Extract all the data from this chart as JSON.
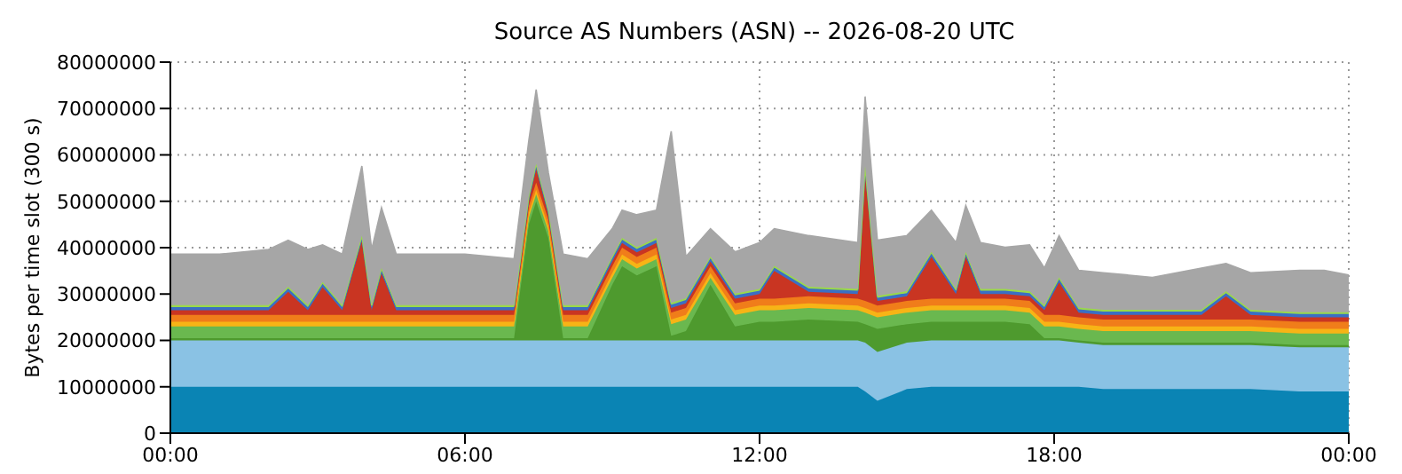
{
  "chart_data": {
    "type": "area",
    "title": "Source AS Numbers (ASN) -- 2026-08-20 UTC",
    "ylabel": "Bytes per time slot (300 s)",
    "stacked": true,
    "grid": true,
    "x": [
      0,
      1,
      2,
      2.4,
      2.8,
      3.1,
      3.5,
      3.9,
      4.1,
      4.3,
      4.6,
      5,
      6,
      7,
      7.3,
      7.45,
      7.7,
      8,
      8.5,
      9,
      9.2,
      9.5,
      9.9,
      10.2,
      10.5,
      11,
      11.5,
      12,
      12.3,
      13,
      14,
      14.15,
      14.4,
      15,
      15.5,
      16,
      16.2,
      16.5,
      17,
      17.5,
      17.8,
      18.1,
      18.5,
      19,
      20,
      21,
      21.5,
      22,
      23,
      23.5,
      24
    ],
    "xlim": [
      0,
      24
    ],
    "xticks": [
      {
        "value": 0,
        "label": "00:00"
      },
      {
        "value": 6,
        "label": "06:00"
      },
      {
        "value": 12,
        "label": "12:00"
      },
      {
        "value": 18,
        "label": "18:00"
      },
      {
        "value": 24,
        "label": "00:00"
      }
    ],
    "ylim": [
      0,
      80000000
    ],
    "yticks": [
      0,
      10000000,
      20000000,
      30000000,
      40000000,
      50000000,
      60000000,
      70000000,
      80000000
    ],
    "series": [
      {
        "color": "#0a84b4",
        "values": [
          10000000,
          10000000,
          10000000,
          10000000,
          10000000,
          10000000,
          10000000,
          10000000,
          10000000,
          10000000,
          10000000,
          10000000,
          10000000,
          10000000,
          10000000,
          10000000,
          10000000,
          10000000,
          10000000,
          10000000,
          10000000,
          10000000,
          10000000,
          10000000,
          10000000,
          10000000,
          10000000,
          10000000,
          10000000,
          10000000,
          10000000,
          9000000,
          7000000,
          9500000,
          10000000,
          10000000,
          10000000,
          10000000,
          10000000,
          10000000,
          10000000,
          10000000,
          10000000,
          9500000,
          9500000,
          9500000,
          9500000,
          9500000,
          9000000,
          9000000,
          9000000
        ]
      },
      {
        "color": "#8ac2e4",
        "values": [
          10000000,
          10000000,
          10000000,
          10000000,
          10000000,
          10000000,
          10000000,
          10000000,
          10000000,
          10000000,
          10000000,
          10000000,
          10000000,
          10000000,
          10000000,
          10000000,
          10000000,
          10000000,
          10000000,
          10000000,
          10000000,
          10000000,
          10000000,
          10000000,
          10000000,
          10000000,
          10000000,
          10000000,
          10000000,
          10000000,
          10000000,
          10500000,
          10500000,
          10000000,
          10000000,
          10000000,
          10000000,
          10000000,
          10000000,
          10000000,
          10000000,
          10000000,
          9500000,
          9500000,
          9500000,
          9500000,
          9500000,
          9500000,
          9500000,
          9500000,
          9500000
        ]
      },
      {
        "color": "#4e9a2e",
        "values": [
          500000,
          500000,
          500000,
          500000,
          500000,
          500000,
          500000,
          500000,
          500000,
          500000,
          500000,
          500000,
          500000,
          500000,
          25000000,
          30000000,
          22000000,
          500000,
          500000,
          12000000,
          16000000,
          14000000,
          16000000,
          1000000,
          2000000,
          12000000,
          3000000,
          4000000,
          4000000,
          4500000,
          4000000,
          4000000,
          5000000,
          4000000,
          4000000,
          4000000,
          4000000,
          4000000,
          4000000,
          3500000,
          500000,
          500000,
          500000,
          500000,
          500000,
          500000,
          500000,
          500000,
          500000,
          500000,
          500000
        ]
      },
      {
        "color": "#6ab84f",
        "values": [
          2500000,
          2500000,
          2500000,
          2500000,
          2500000,
          2500000,
          2500000,
          2500000,
          2500000,
          2500000,
          2500000,
          2500000,
          2500000,
          2500000,
          1500000,
          1500000,
          1500000,
          2500000,
          2500000,
          1500000,
          1500000,
          1500000,
          1500000,
          2500000,
          2500000,
          1500000,
          2500000,
          2500000,
          2500000,
          2500000,
          2500000,
          2500000,
          2500000,
          2500000,
          2500000,
          2500000,
          2500000,
          2500000,
          2500000,
          2500000,
          2500000,
          2500000,
          2500000,
          2500000,
          2500000,
          2500000,
          2500000,
          2500000,
          2500000,
          2500000,
          2500000
        ]
      },
      {
        "color": "#f7b416",
        "values": [
          1000000,
          1000000,
          1000000,
          1000000,
          1000000,
          1000000,
          1000000,
          1000000,
          1000000,
          1000000,
          1000000,
          1000000,
          1000000,
          1000000,
          1000000,
          1000000,
          1000000,
          1000000,
          1000000,
          1000000,
          1000000,
          1000000,
          1000000,
          1000000,
          1000000,
          1000000,
          1000000,
          1000000,
          1000000,
          1000000,
          1000000,
          1000000,
          1000000,
          1000000,
          1000000,
          1000000,
          1000000,
          1000000,
          1000000,
          1000000,
          1000000,
          1000000,
          1000000,
          1000000,
          1000000,
          1000000,
          1000000,
          1000000,
          1000000,
          1000000,
          1000000
        ]
      },
      {
        "color": "#f07d1a",
        "values": [
          1500000,
          1500000,
          1500000,
          1500000,
          1500000,
          1500000,
          1500000,
          1500000,
          1500000,
          1500000,
          1500000,
          1500000,
          1500000,
          1500000,
          1500000,
          1500000,
          1500000,
          1500000,
          1500000,
          1500000,
          1500000,
          1500000,
          1500000,
          1500000,
          1500000,
          1500000,
          1500000,
          1500000,
          1500000,
          1500000,
          1500000,
          1500000,
          1500000,
          1500000,
          1500000,
          1500000,
          1500000,
          1500000,
          1500000,
          1500000,
          1500000,
          1500000,
          1500000,
          1500000,
          1500000,
          1500000,
          1500000,
          1500000,
          1500000,
          1500000,
          1500000
        ]
      },
      {
        "color": "#c93522",
        "values": [
          1000000,
          1000000,
          1000000,
          5000000,
          1000000,
          6000000,
          1000000,
          16000000,
          1000000,
          9000000,
          1000000,
          1000000,
          1000000,
          1000000,
          1000000,
          3000000,
          1000000,
          1000000,
          1000000,
          1000000,
          1000000,
          1000000,
          1000000,
          1000000,
          1000000,
          1000000,
          1000000,
          1000000,
          6000000,
          1000000,
          1000000,
          28000000,
          1000000,
          1000000,
          9000000,
          1000000,
          9000000,
          1000000,
          1000000,
          1000000,
          1000000,
          7000000,
          1000000,
          1000000,
          1000000,
          1000000,
          5000000,
          1000000,
          1000000,
          1000000,
          1000000
        ]
      },
      {
        "color": "#3a6fc4",
        "values": [
          700000,
          700000,
          700000,
          700000,
          700000,
          700000,
          700000,
          700000,
          700000,
          700000,
          700000,
          700000,
          700000,
          700000,
          700000,
          700000,
          700000,
          700000,
          700000,
          700000,
          700000,
          700000,
          700000,
          700000,
          700000,
          700000,
          700000,
          700000,
          700000,
          700000,
          700000,
          700000,
          700000,
          700000,
          700000,
          700000,
          700000,
          700000,
          700000,
          700000,
          700000,
          700000,
          700000,
          700000,
          700000,
          700000,
          700000,
          700000,
          700000,
          700000,
          700000
        ]
      },
      {
        "color": "#9ad94a",
        "values": [
          400000,
          400000,
          400000,
          400000,
          400000,
          400000,
          400000,
          400000,
          400000,
          400000,
          400000,
          400000,
          400000,
          400000,
          400000,
          400000,
          400000,
          400000,
          400000,
          400000,
          400000,
          400000,
          400000,
          400000,
          400000,
          400000,
          400000,
          400000,
          400000,
          400000,
          400000,
          400000,
          400000,
          400000,
          400000,
          400000,
          400000,
          400000,
          400000,
          400000,
          400000,
          400000,
          400000,
          400000,
          400000,
          400000,
          400000,
          400000,
          400000,
          400000,
          400000
        ]
      },
      {
        "color": "#a6a6a6",
        "values": [
          11000000,
          11000000,
          12000000,
          10000000,
          12000000,
          8000000,
          11000000,
          15000000,
          12000000,
          13000000,
          11000000,
          11000000,
          11000000,
          10000000,
          12000000,
          16000000,
          8000000,
          11000000,
          10000000,
          6000000,
          6000000,
          7000000,
          6000000,
          37000000,
          9000000,
          6000000,
          9000000,
          10000000,
          8000000,
          11000000,
          10000000,
          15000000,
          12000000,
          12000000,
          9000000,
          10000000,
          10000000,
          10000000,
          9000000,
          10000000,
          8000000,
          9000000,
          8000000,
          8000000,
          7000000,
          9000000,
          6000000,
          8000000,
          9000000,
          9000000,
          8000000
        ]
      }
    ]
  }
}
